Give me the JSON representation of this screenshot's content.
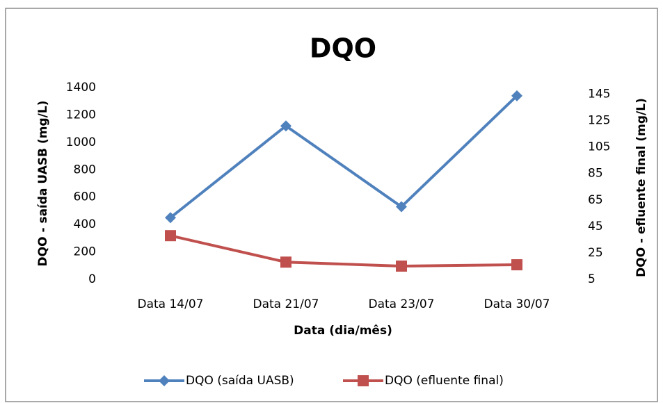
{
  "chart_data": {
    "type": "line",
    "title": "DQO",
    "x_label": "Data (dia/mês)",
    "y_label": "DQO - saída UASB (mg/L)",
    "y2_label": "DQO - efluente final (mg/L)",
    "categories": [
      "Data 14/07",
      "Data 21/07",
      "Data 23/07",
      "Data 30/07"
    ],
    "series": [
      {
        "name": "DQO (saída UASB)",
        "color": "#4f81bd",
        "marker": "diamond",
        "values": [
          450,
          1120,
          530,
          1340
        ]
      },
      {
        "name": "DQO (efluente final)",
        "color": "#c0504d",
        "marker": "square",
        "axis": "y2",
        "values": [
          38,
          18,
          15,
          16
        ]
      }
    ],
    "ylim": [
      0,
      1400
    ],
    "yticks": [
      0,
      200,
      400,
      600,
      800,
      1000,
      1200,
      1400
    ],
    "y2lim": [
      5,
      150
    ],
    "y2ticks": [
      5,
      25,
      45,
      65,
      85,
      105,
      125,
      145
    ],
    "grid": false,
    "legend": "bottom"
  }
}
